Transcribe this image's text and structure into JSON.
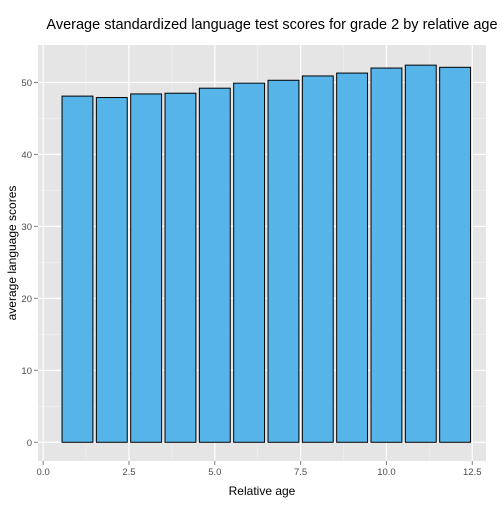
{
  "chart_data": {
    "type": "bar",
    "title": "Average standardized language test scores for grade 2 by relative age",
    "xlabel": "Relative age",
    "ylabel": "average language scores",
    "x": [
      1,
      2,
      3,
      4,
      5,
      6,
      7,
      8,
      9,
      10,
      11,
      12
    ],
    "values": [
      48.1,
      47.9,
      48.4,
      48.5,
      49.2,
      49.9,
      50.3,
      50.9,
      51.3,
      52.0,
      52.4,
      52.1
    ],
    "xlim": [
      -0.15,
      12.9
    ],
    "ylim": [
      -2.6,
      55.2
    ],
    "xticks": [
      0.0,
      2.5,
      5.0,
      7.5,
      10.0,
      12.5
    ],
    "xtick_labels": [
      "0.0",
      "2.5",
      "5.0",
      "7.5",
      "10.0",
      "12.5"
    ],
    "yticks": [
      0,
      10,
      20,
      30,
      40,
      50
    ],
    "ytick_labels": [
      "0",
      "10",
      "20",
      "30",
      "40",
      "50"
    ],
    "grid": true,
    "legend": "none",
    "colors": {
      "bar_fill": "#56b4e9",
      "bar_outline": "#000000",
      "panel_background": "#e5e5e5",
      "grid_major": "#ffffff",
      "grid_minor": "#f2f2f2"
    }
  }
}
